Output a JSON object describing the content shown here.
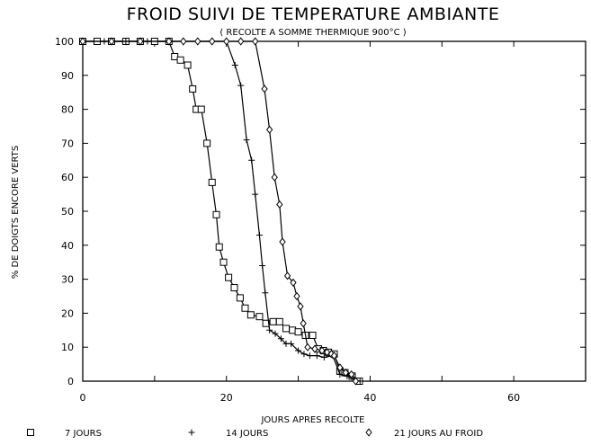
{
  "chart_data": {
    "type": "line",
    "title": "FROID SUIVI DE TEMPERATURE AMBIANTE",
    "subtitle": "( RECOLTE A SOMME THERMIQUE 900°C )",
    "xlabel": "JOURS APRES RECOLTE",
    "ylabel": "% DE DOIGTS ENCORE VERTS",
    "xlim": [
      0,
      70
    ],
    "ylim": [
      0,
      100
    ],
    "x_ticks": [
      "0",
      "20",
      "40",
      "60"
    ],
    "y_ticks": [
      "0",
      "10",
      "20",
      "30",
      "40",
      "50",
      "60",
      "70",
      "80",
      "90",
      "100"
    ],
    "grid": false,
    "legend_position": "bottom",
    "series": [
      {
        "name": "7 JOURS",
        "marker": "square",
        "points": [
          [
            0,
            100
          ],
          [
            2,
            100
          ],
          [
            4,
            100
          ],
          [
            6,
            100
          ],
          [
            8,
            100
          ],
          [
            10,
            100
          ],
          [
            12,
            100
          ],
          [
            12.8,
            95.5
          ],
          [
            13.6,
            94.5
          ],
          [
            14.6,
            93
          ],
          [
            15.3,
            86
          ],
          [
            15.8,
            80
          ],
          [
            16.5,
            80
          ],
          [
            17.3,
            70
          ],
          [
            18,
            58.5
          ],
          [
            18.6,
            49
          ],
          [
            19,
            39.5
          ],
          [
            19.6,
            35
          ],
          [
            20.3,
            30.5
          ],
          [
            21.1,
            27.5
          ],
          [
            21.9,
            24.5
          ],
          [
            22.6,
            21.5
          ],
          [
            23.4,
            19.5
          ],
          [
            24.6,
            19
          ],
          [
            25.5,
            17
          ],
          [
            26.5,
            17.5
          ],
          [
            27.4,
            17.5
          ],
          [
            28.3,
            15.5
          ],
          [
            29.2,
            15
          ],
          [
            30,
            14.5
          ],
          [
            31,
            13.5
          ],
          [
            32,
            13.5
          ],
          [
            32.8,
            9.5
          ],
          [
            33.5,
            9
          ],
          [
            34.2,
            8.5
          ],
          [
            35,
            8
          ],
          [
            35.8,
            3
          ],
          [
            36.5,
            2.5
          ],
          [
            37.5,
            1.5
          ],
          [
            38.5,
            0
          ]
        ]
      },
      {
        "name": "14 JOURS",
        "marker": "plus",
        "points": [
          [
            0,
            100
          ],
          [
            3,
            100
          ],
          [
            6,
            100
          ],
          [
            9,
            100
          ],
          [
            12,
            100
          ],
          [
            14,
            100
          ],
          [
            16,
            100
          ],
          [
            18,
            100
          ],
          [
            20,
            100
          ],
          [
            21.2,
            93
          ],
          [
            22,
            87
          ],
          [
            22.8,
            71
          ],
          [
            23.5,
            65
          ],
          [
            24,
            55
          ],
          [
            24.6,
            43
          ],
          [
            25,
            34
          ],
          [
            25.4,
            26
          ],
          [
            26,
            15
          ],
          [
            26.8,
            14
          ],
          [
            27.6,
            12.5
          ],
          [
            28.3,
            11
          ],
          [
            29,
            11
          ],
          [
            30,
            9
          ],
          [
            30.8,
            8
          ],
          [
            31.6,
            7.5
          ],
          [
            32.6,
            7.5
          ],
          [
            33.6,
            7
          ],
          [
            34.8,
            7.5
          ],
          [
            35.8,
            2
          ],
          [
            36.8,
            1.5
          ],
          [
            37.8,
            0.5
          ],
          [
            38.6,
            0
          ]
        ]
      },
      {
        "name": "21 JOURS AU FROID",
        "marker": "diamond",
        "points": [
          [
            0,
            100
          ],
          [
            4,
            100
          ],
          [
            8,
            100
          ],
          [
            12,
            100
          ],
          [
            14,
            100
          ],
          [
            16,
            100
          ],
          [
            18,
            100
          ],
          [
            20,
            100
          ],
          [
            22,
            100
          ],
          [
            24,
            100
          ],
          [
            25.3,
            86
          ],
          [
            26,
            74
          ],
          [
            26.7,
            60
          ],
          [
            27.4,
            52
          ],
          [
            27.8,
            41
          ],
          [
            28.5,
            31
          ],
          [
            29.3,
            29
          ],
          [
            29.8,
            25
          ],
          [
            30.3,
            22
          ],
          [
            30.7,
            17
          ],
          [
            31.3,
            10
          ],
          [
            32.3,
            9.5
          ],
          [
            33.3,
            9
          ],
          [
            34,
            8.5
          ],
          [
            34.6,
            8
          ],
          [
            35,
            7.5
          ],
          [
            35.8,
            4
          ],
          [
            36.6,
            2.5
          ],
          [
            37.4,
            2
          ],
          [
            38,
            0
          ]
        ]
      }
    ]
  }
}
